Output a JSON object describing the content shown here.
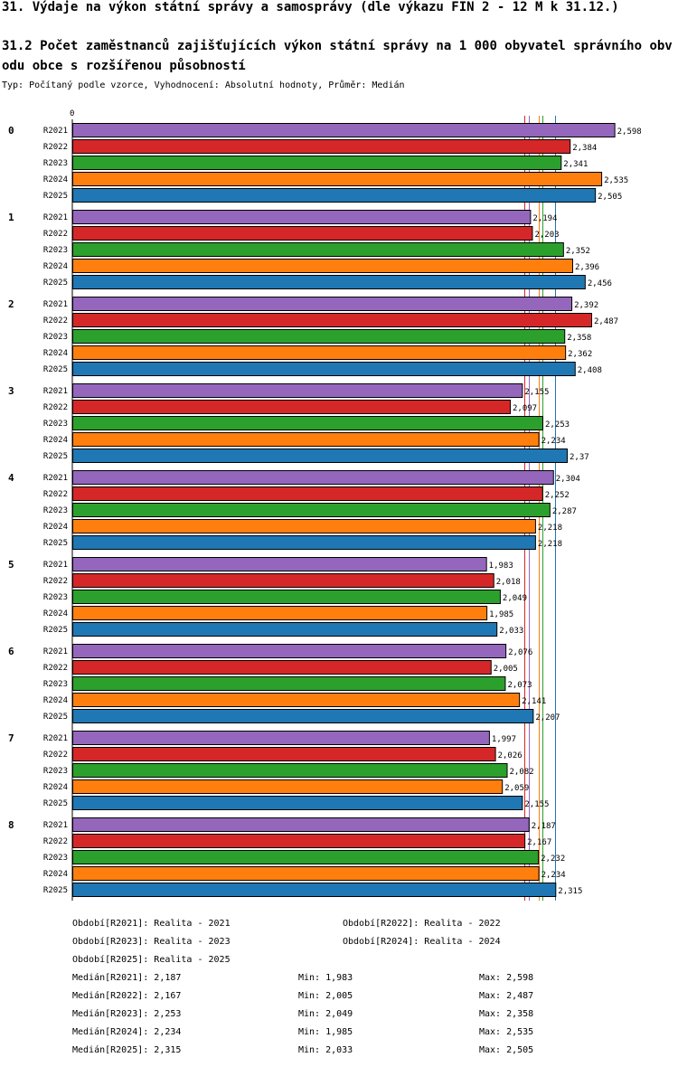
{
  "title": "31. Výdaje na výkon státní správy a samosprávy (dle výkazu FIN 2 - 12 M k 31.12.)",
  "subtitle": "31.2 Počet zaměstnanců zajišťujících výkon státní správy na 1 000 obyvatel správního obvodu obce s rozšířenou působností",
  "meta": "Typ: Počítaný podle vzorce, Vyhodnocení: Absolutní hodnoty, Průměr: Medián",
  "chart_data": {
    "type": "bar",
    "orientation": "horizontal",
    "x_axis_zero_label": "0",
    "xlim": [
      0,
      2.6
    ],
    "groups": [
      "0",
      "1",
      "2",
      "3",
      "4",
      "5",
      "6",
      "7",
      "8"
    ],
    "series": [
      {
        "name": "R2021",
        "color": "#9467bd",
        "values": [
          2.598,
          2.194,
          2.392,
          2.155,
          2.304,
          1.983,
          2.076,
          1.997,
          2.187
        ],
        "labels": [
          "2,598",
          "2,194",
          "2,392",
          "2,155",
          "2,304",
          "1,983",
          "2,076",
          "1,997",
          "2,187"
        ]
      },
      {
        "name": "R2022",
        "color": "#d62728",
        "values": [
          2.384,
          2.203,
          2.487,
          2.097,
          2.252,
          2.018,
          2.005,
          2.026,
          2.167
        ],
        "labels": [
          "2,384",
          "2,203",
          "2,487",
          "2,097",
          "2,252",
          "2,018",
          "2,005",
          "2,026",
          "2,167"
        ]
      },
      {
        "name": "R2023",
        "color": "#2ca02c",
        "values": [
          2.341,
          2.352,
          2.358,
          2.253,
          2.287,
          2.049,
          2.073,
          2.082,
          2.232
        ],
        "labels": [
          "2,341",
          "2,352",
          "2,358",
          "2,253",
          "2,287",
          "2,049",
          "2,073",
          "2,082",
          "2,232"
        ]
      },
      {
        "name": "R2024",
        "color": "#ff7f0e",
        "values": [
          2.535,
          2.396,
          2.362,
          2.234,
          2.218,
          1.985,
          2.141,
          2.059,
          2.234
        ],
        "labels": [
          "2,535",
          "2,396",
          "2,362",
          "2,234",
          "2,218",
          "1,985",
          "2,141",
          "2,059",
          "2,234"
        ]
      },
      {
        "name": "R2025",
        "color": "#1f77b4",
        "values": [
          2.505,
          2.456,
          2.408,
          2.37,
          2.218,
          2.033,
          2.207,
          2.155,
          2.315
        ],
        "labels": [
          "2,505",
          "2,456",
          "2,408",
          "2,37",
          "2,218",
          "2,033",
          "2,207",
          "2,155",
          "2,315"
        ]
      }
    ],
    "reference_lines": [
      {
        "series": "R2022",
        "value": 2.167,
        "color": "#d62728"
      },
      {
        "series": "R2021",
        "value": 2.187,
        "color": "#9467bd"
      },
      {
        "series": "R2024",
        "value": 2.234,
        "color": "#ff7f0e"
      },
      {
        "series": "R2023",
        "value": 2.253,
        "color": "#2ca02c"
      },
      {
        "series": "R2025",
        "value": 2.315,
        "color": "#1f77b4"
      }
    ],
    "legend": [
      {
        "text": "Období[R2021]: Realita - 2021"
      },
      {
        "text": "Období[R2022]: Realita - 2022"
      },
      {
        "text": "Období[R2023]: Realita - 2023"
      },
      {
        "text": "Období[R2024]: Realita - 2024"
      },
      {
        "text": "Období[R2025]: Realita - 2025"
      }
    ],
    "stats": [
      {
        "median": "Medián[R2021]: 2,187",
        "min": "Min: 1,983",
        "max": "Max: 2,598"
      },
      {
        "median": "Medián[R2022]: 2,167",
        "min": "Min: 2,005",
        "max": "Max: 2,487"
      },
      {
        "median": "Medián[R2023]: 2,253",
        "min": "Min: 2,049",
        "max": "Max: 2,358"
      },
      {
        "median": "Medián[R2024]: 2,234",
        "min": "Min: 1,985",
        "max": "Max: 2,535"
      },
      {
        "median": "Medián[R2025]: 2,315",
        "min": "Min: 2,033",
        "max": "Max: 2,505"
      }
    ]
  }
}
